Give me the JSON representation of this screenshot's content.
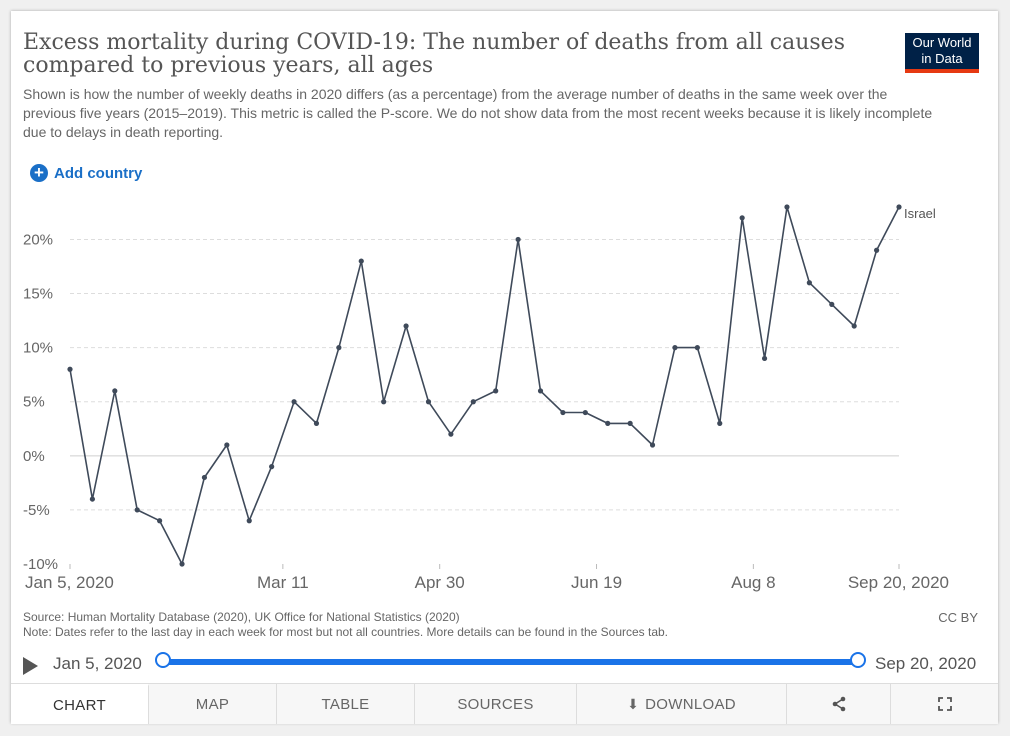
{
  "header": {
    "title": "Excess mortality during COVID-19: The number of deaths from all causes compared to previous years, all ages",
    "subtitle": "Shown is how the number of weekly deaths in 2020 differs (as a percentage) from the average number of deaths in the same week over the previous five years (2015–2019). This metric is called the P-score. We do not show data from the most recent weeks because it is likely incomplete due to delays in death reporting.",
    "logo_line1": "Our World",
    "logo_line2": "in Data"
  },
  "controls": {
    "add_country_label": "Add country"
  },
  "chart_data": {
    "type": "line",
    "title": "Excess mortality during COVID-19: The number of deaths from all causes compared to previous years, all ages",
    "xlabel": "",
    "ylabel": "",
    "x_ticks": [
      "Jan 5, 2020",
      "Mar 11",
      "Apr 30",
      "Jun 19",
      "Aug 8",
      "Sep 20, 2020"
    ],
    "x_tick_weeks": [
      1,
      10.5,
      17.5,
      24.5,
      31.5,
      38
    ],
    "y_ticks": [
      "-10%",
      "-5%",
      "0%",
      "5%",
      "10%",
      "15%",
      "20%"
    ],
    "y_tick_values": [
      -10,
      -5,
      0,
      5,
      10,
      15,
      20
    ],
    "ylim": [
      -10,
      23
    ],
    "grid": true,
    "color": "#3f4a5a",
    "series": [
      {
        "name": "Israel",
        "x": [
          1,
          2,
          3,
          4,
          5,
          6,
          7,
          8,
          9,
          10,
          11,
          12,
          13,
          14,
          15,
          16,
          17,
          18,
          19,
          20,
          21,
          22,
          23,
          24,
          25,
          26,
          27,
          28,
          29,
          30,
          31,
          32,
          33,
          34,
          35,
          36,
          37,
          38
        ],
        "values": [
          8,
          -4,
          6,
          -5,
          -6,
          -10,
          -2,
          1,
          -6,
          -1,
          5,
          3,
          10,
          18,
          5,
          12,
          5,
          2,
          5,
          6,
          20,
          6,
          4,
          4,
          3,
          3,
          1,
          10,
          10,
          3,
          22,
          9,
          23,
          16,
          14,
          12,
          19,
          23
        ]
      }
    ]
  },
  "footer": {
    "source": "Source: Human Mortality Database (2020), UK Office for National Statistics (2020)",
    "note": "Note: Dates refer to the last day in each week for most but not all countries. More details can be found in the Sources tab.",
    "license": "CC BY"
  },
  "timeline": {
    "start": "Jan 5, 2020",
    "end": "Sep 20, 2020"
  },
  "tabs": [
    {
      "label": "CHART"
    },
    {
      "label": "MAP"
    },
    {
      "label": "TABLE"
    },
    {
      "label": "SOURCES"
    },
    {
      "label": "DOWNLOAD"
    }
  ],
  "icons": {
    "share": "share-icon",
    "fullscreen": "fullscreen-icon"
  }
}
